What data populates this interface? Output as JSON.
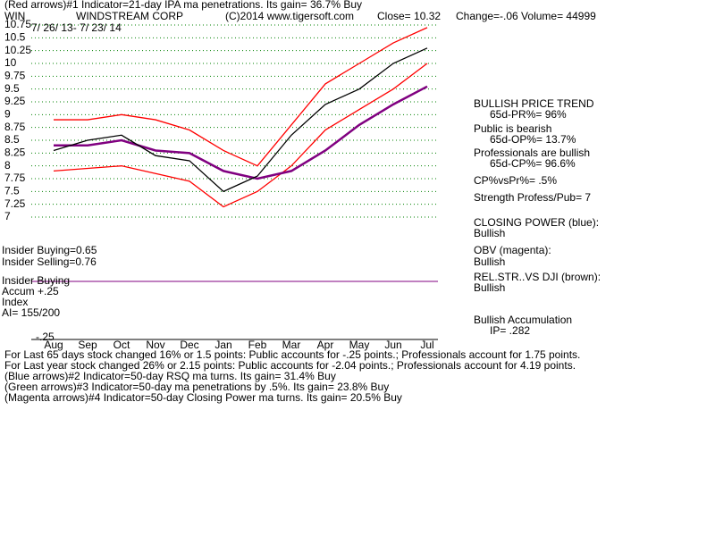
{
  "header": {
    "indicator": "(Red arrows)#1 Indicator=21-day IPA ma penetrations. Its gain= 36.7% Buy",
    "symbol": "WIN",
    "company": "WINDSTREAM CORP",
    "copyright": "(C)2014 www.tigersoft.com",
    "close": "Close=  10.32",
    "change": "Change=-.06 Volume= 44999",
    "dates": "7/ 26/ 13-  7/ 23/ 14"
  },
  "chart_data": {
    "type": "line",
    "categories": [
      "Aug",
      "Sep",
      "Oct",
      "Nov",
      "Dec",
      "Jan",
      "Feb",
      "Mar",
      "Apr",
      "May",
      "Jun",
      "Jul"
    ],
    "series": [
      {
        "color": "#ff0000",
        "values": [
          8.9,
          8.9,
          9.0,
          8.9,
          8.7,
          8.3,
          8.0,
          8.8,
          9.6,
          10.0,
          10.4,
          10.7
        ]
      },
      {
        "color": "#ff0000",
        "values": [
          7.9,
          7.95,
          8.0,
          7.85,
          7.7,
          7.2,
          7.5,
          8.0,
          8.7,
          9.1,
          9.5,
          10.0
        ]
      },
      {
        "color": "#800080",
        "values": [
          8.4,
          8.4,
          8.5,
          8.3,
          8.25,
          7.9,
          7.75,
          7.9,
          8.3,
          8.8,
          9.2,
          9.55
        ]
      },
      {
        "color": "#000000",
        "values": [
          8.3,
          8.5,
          8.6,
          8.2,
          8.1,
          7.5,
          7.8,
          8.6,
          9.2,
          9.5,
          10.0,
          10.3
        ]
      }
    ],
    "ylim": [
      7,
      10.75
    ],
    "yticks": [
      10.75,
      10.5,
      10.25,
      10,
      9.75,
      9.5,
      9.25,
      9,
      8.75,
      8.5,
      8.25,
      8,
      7.75,
      7.5,
      7.25,
      7
    ],
    "grid": true,
    "grid_color": "#008000"
  },
  "panel_labels": [
    "Insider Buying=0.65",
    "Insider Selling=0.76",
    "Insider Buying",
    "Accum  +.25",
    "Index",
    "AI= 155/200",
    "-.25"
  ],
  "summary": [
    "BULLISH PRICE TREND",
    "65d-PR%= 96%",
    "Public is bearish",
    "65d-OP%= 13.7%",
    "Professionals are bullish",
    "65d-CP%= 96.6%",
    "CP%vsPr%=  .5%",
    "Strength Profess/Pub= 7",
    "CLOSING POWER (blue):",
    "Bullish",
    "OBV (magenta):",
    "Bullish",
    "REL.STR..VS DJI (brown):",
    "Bullish",
    "Bullish Accumulation",
    "IP=  .282"
  ],
  "notes": [
    "For Last 65 days stock changed  16% or  1.5 points:  Public accounts for -.25 points.;  Professionals account for  1.75 points.",
    "For Last year stock changed  26% or  2.15 points:  Public accounts for -2.04 points.;  Professionals account for  4.19 points.",
    "(Blue arrows)#2 Indicator=50-day RSQ ma turns. Its gain= 31.4% Buy",
    "(Green arrows)#3 Indicator=50-day ma penetrations by .5%. Its gain= 23.8% Buy",
    "(Magenta arrows)#4 Indicator=50-day Closing Power ma turns. Its gain= 20.5% Buy"
  ]
}
